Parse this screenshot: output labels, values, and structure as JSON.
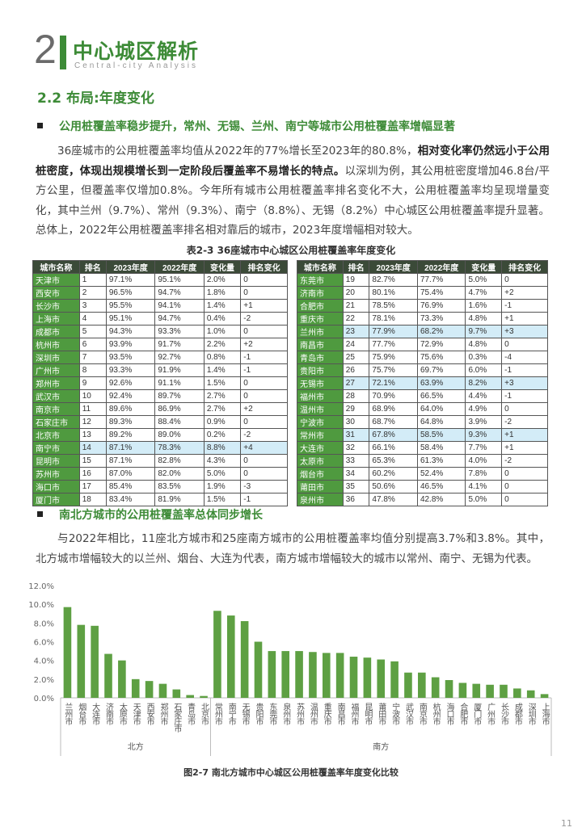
{
  "header": {
    "number": "2",
    "title": "中心城区解析",
    "subtitle": "Central-city Analysis"
  },
  "section": "2.2 布局:年度变化",
  "bullets": [
    "公用桩覆盖率稳步提升，常州、无锡、兰州、南宁等城市公用桩覆盖率增幅显著",
    "南北方城市的公用桩覆盖率总体同步增长"
  ],
  "paragraphs": [
    [
      {
        "text": "36座城市的公用桩覆盖率均值从2022年的77%增长至2023年的80.8%，",
        "bold": false
      },
      {
        "text": "相对变化率仍然远小于公用桩密度，体现出规模增长到一定阶段后覆盖率不易增长的特点。",
        "bold": true
      },
      {
        "text": "以深圳为例，其公用桩密度增加46.8台/平方公里，但覆盖率仅增加0.8%。今年所有城市公用桩覆盖率排名变化不大，公用桩覆盖率均呈现增量变化，其中兰州（9.7%）、常州（9.3%）、南宁（8.8%）、无锡（8.2%）中心城区公用桩覆盖率提升显著。总体上，2022年公用桩覆盖率排名相对靠后的城市，2023年度增幅相对较大。",
        "bold": false
      }
    ],
    [
      {
        "text": "与2022年相比，11座北方城市和25座南方城市的公用桩覆盖率均值分别提高3.7%和3.8%。其中，北方城市增幅较大的以兰州、烟台、大连为代表，南方城市增幅较大的城市以常州、南宁、无锡为代表。",
        "bold": false
      }
    ]
  ],
  "table": {
    "caption": "表2-3 36座城市中心城区公用桩覆盖率年度变化",
    "header_color": "#3b4a38",
    "city_color": "#4f9a3f",
    "highlight_color": "#d3ecf7",
    "columns": [
      "城市名称",
      "排名",
      "2023年度",
      "2022年度",
      "变化量",
      "排名变化"
    ],
    "highlight_rows": [
      13,
      22,
      26,
      30
    ],
    "rows": [
      [
        "天津市",
        "1",
        "97.1%",
        "95.1%",
        "2.0%",
        "0"
      ],
      [
        "西安市",
        "2",
        "96.5%",
        "94.7%",
        "1.8%",
        "0"
      ],
      [
        "长沙市",
        "3",
        "95.5%",
        "94.1%",
        "1.4%",
        "+1"
      ],
      [
        "上海市",
        "4",
        "95.1%",
        "94.7%",
        "0.4%",
        "-2"
      ],
      [
        "成都市",
        "5",
        "94.3%",
        "93.3%",
        "1.0%",
        "0"
      ],
      [
        "杭州市",
        "6",
        "93.9%",
        "91.7%",
        "2.2%",
        "+2"
      ],
      [
        "深圳市",
        "7",
        "93.5%",
        "92.7%",
        "0.8%",
        "-1"
      ],
      [
        "广州市",
        "8",
        "93.3%",
        "91.9%",
        "1.4%",
        "-1"
      ],
      [
        "郑州市",
        "9",
        "92.6%",
        "91.1%",
        "1.5%",
        "0"
      ],
      [
        "武汉市",
        "10",
        "92.4%",
        "89.7%",
        "2.7%",
        "0"
      ],
      [
        "南京市",
        "11",
        "89.6%",
        "86.9%",
        "2.7%",
        "+2"
      ],
      [
        "石家庄市",
        "12",
        "89.3%",
        "88.4%",
        "0.9%",
        "0"
      ],
      [
        "北京市",
        "13",
        "89.2%",
        "89.0%",
        "0.2%",
        "-2"
      ],
      [
        "南宁市",
        "14",
        "87.1%",
        "78.3%",
        "8.8%",
        "+4"
      ],
      [
        "昆明市",
        "15",
        "87.1%",
        "82.8%",
        "4.3%",
        "0"
      ],
      [
        "苏州市",
        "16",
        "87.0%",
        "82.0%",
        "5.0%",
        "0"
      ],
      [
        "海口市",
        "17",
        "85.4%",
        "83.5%",
        "1.9%",
        "-3"
      ],
      [
        "厦门市",
        "18",
        "83.4%",
        "81.9%",
        "1.5%",
        "-1"
      ],
      [
        "东莞市",
        "19",
        "82.7%",
        "77.7%",
        "5.0%",
        "0"
      ],
      [
        "济南市",
        "20",
        "80.1%",
        "75.4%",
        "4.7%",
        "+2"
      ],
      [
        "合肥市",
        "21",
        "78.5%",
        "76.9%",
        "1.6%",
        "-1"
      ],
      [
        "重庆市",
        "22",
        "78.1%",
        "73.3%",
        "4.8%",
        "+1"
      ],
      [
        "兰州市",
        "23",
        "77.9%",
        "68.2%",
        "9.7%",
        "+3"
      ],
      [
        "南昌市",
        "24",
        "77.7%",
        "72.9%",
        "4.8%",
        "0"
      ],
      [
        "青岛市",
        "25",
        "75.9%",
        "75.6%",
        "0.3%",
        "-4"
      ],
      [
        "贵阳市",
        "26",
        "75.7%",
        "69.7%",
        "6.0%",
        "-1"
      ],
      [
        "无锡市",
        "27",
        "72.1%",
        "63.9%",
        "8.2%",
        "+3"
      ],
      [
        "福州市",
        "28",
        "70.9%",
        "66.5%",
        "4.4%",
        "-1"
      ],
      [
        "温州市",
        "29",
        "68.9%",
        "64.0%",
        "4.9%",
        "0"
      ],
      [
        "宁波市",
        "30",
        "68.7%",
        "64.8%",
        "3.9%",
        "-2"
      ],
      [
        "常州市",
        "31",
        "67.8%",
        "58.5%",
        "9.3%",
        "+1"
      ],
      [
        "大连市",
        "32",
        "66.1%",
        "58.4%",
        "7.7%",
        "+1"
      ],
      [
        "太原市",
        "33",
        "65.3%",
        "61.3%",
        "4.0%",
        "-2"
      ],
      [
        "烟台市",
        "34",
        "60.2%",
        "52.4%",
        "7.8%",
        "0"
      ],
      [
        "莆田市",
        "35",
        "50.6%",
        "46.5%",
        "4.1%",
        "0"
      ],
      [
        "泉州市",
        "36",
        "47.8%",
        "42.8%",
        "5.0%",
        "0"
      ]
    ]
  },
  "chart_data": {
    "type": "bar",
    "title": "图2-7 南北方城市中心城区公用桩覆盖率年度变化比较",
    "color": "#5ea043",
    "categories": [
      "兰州市",
      "烟台市",
      "大连市",
      "济南市",
      "太原市",
      "天津市",
      "西安市",
      "郑州市",
      "石家庄市",
      "青岛市",
      "北京市",
      "常州市",
      "南宁市",
      "无锡市",
      "贵阳市",
      "东莞市",
      "泉州市",
      "苏州市",
      "温州市",
      "重庆市",
      "南昌市",
      "福州市",
      "昆明市",
      "莆田市",
      "宁波市",
      "武汉市",
      "南京市",
      "杭州市",
      "海口市",
      "合肥市",
      "厦门市",
      "广州市",
      "长沙市",
      "成都市",
      "深圳市",
      "上海市"
    ],
    "values": [
      9.7,
      7.8,
      7.7,
      4.7,
      4.0,
      2.0,
      1.8,
      1.5,
      0.9,
      0.3,
      0.2,
      9.3,
      8.8,
      8.2,
      6.0,
      5.0,
      5.0,
      5.0,
      4.9,
      4.8,
      4.8,
      4.4,
      4.3,
      4.1,
      3.9,
      2.7,
      2.7,
      2.2,
      1.9,
      1.6,
      1.5,
      1.4,
      1.4,
      1.0,
      0.8,
      0.4
    ],
    "group_labels": [
      "北方",
      "南方"
    ],
    "group_sizes": [
      11,
      25
    ],
    "ylim": [
      0,
      12
    ],
    "yticks": [
      {
        "value": 0,
        "label": "0.0%"
      },
      {
        "value": 2,
        "label": "2.0%"
      },
      {
        "value": 4,
        "label": "4.0%"
      },
      {
        "value": 6,
        "label": "6.0%"
      },
      {
        "value": 8,
        "label": "8.0%"
      },
      {
        "value": 10,
        "label": "10.0%"
      },
      {
        "value": 12,
        "label": "12.0%"
      }
    ],
    "grid": false
  },
  "page_number": "11"
}
